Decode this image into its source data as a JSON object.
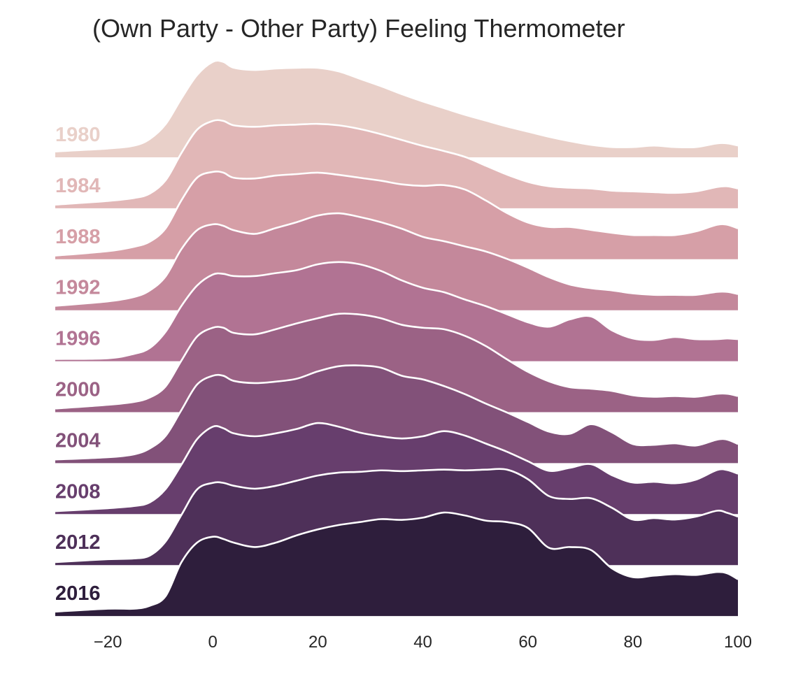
{
  "chart_data": {
    "type": "ridgeline",
    "title": "(Own Party - Other Party) Feeling Thermometer",
    "xlabel": "",
    "ylabel": "",
    "xlim": [
      -30,
      100
    ],
    "xticks": [
      -20,
      0,
      20,
      40,
      60,
      80,
      100
    ],
    "xtick_labels": [
      "−20",
      "0",
      "20",
      "40",
      "60",
      "80",
      "100"
    ],
    "grid": false,
    "x": [
      -30,
      -20,
      -15,
      -12,
      -9,
      -6,
      -3,
      0,
      2,
      4,
      8,
      12,
      16,
      20,
      24,
      28,
      32,
      36,
      40,
      44,
      48,
      52,
      56,
      60,
      64,
      68,
      72,
      76,
      80,
      84,
      88,
      92,
      96,
      98,
      100
    ],
    "series": [
      {
        "name": "1980",
        "color": "#e9d0c9",
        "values": [
          0.08,
          0.12,
          0.16,
          0.25,
          0.45,
          0.8,
          1.12,
          1.3,
          1.3,
          1.22,
          1.19,
          1.21,
          1.22,
          1.22,
          1.17,
          1.07,
          0.97,
          0.86,
          0.76,
          0.67,
          0.58,
          0.5,
          0.42,
          0.35,
          0.28,
          0.22,
          0.17,
          0.14,
          0.14,
          0.16,
          0.14,
          0.14,
          0.19,
          0.19,
          0.16
        ]
      },
      {
        "name": "1984",
        "color": "#e1b7b7",
        "values": [
          0.05,
          0.1,
          0.14,
          0.2,
          0.38,
          0.75,
          1.07,
          1.19,
          1.19,
          1.13,
          1.11,
          1.13,
          1.14,
          1.15,
          1.13,
          1.08,
          1.01,
          0.93,
          0.85,
          0.78,
          0.7,
          0.58,
          0.46,
          0.36,
          0.3,
          0.28,
          0.27,
          0.24,
          0.23,
          0.22,
          0.21,
          0.23,
          0.29,
          0.3,
          0.27
        ]
      },
      {
        "name": "1988",
        "color": "#d69fa7",
        "values": [
          0.05,
          0.11,
          0.17,
          0.24,
          0.42,
          0.8,
          1.11,
          1.19,
          1.18,
          1.11,
          1.1,
          1.14,
          1.16,
          1.18,
          1.15,
          1.11,
          1.07,
          1.02,
          1.0,
          1.01,
          0.95,
          0.8,
          0.63,
          0.5,
          0.44,
          0.44,
          0.4,
          0.36,
          0.33,
          0.33,
          0.33,
          0.38,
          0.47,
          0.47,
          0.42
        ]
      },
      {
        "name": "1992",
        "color": "#c4889b",
        "values": [
          0.06,
          0.12,
          0.18,
          0.27,
          0.46,
          0.83,
          1.09,
          1.17,
          1.15,
          1.09,
          1.04,
          1.12,
          1.2,
          1.29,
          1.32,
          1.27,
          1.2,
          1.11,
          1.0,
          0.94,
          0.87,
          0.8,
          0.7,
          0.58,
          0.45,
          0.35,
          0.3,
          0.27,
          0.23,
          0.21,
          0.21,
          0.21,
          0.25,
          0.25,
          0.22
        ]
      },
      {
        "name": "1996",
        "color": "#b17393",
        "values": [
          0.03,
          0.04,
          0.1,
          0.18,
          0.4,
          0.75,
          1.03,
          1.18,
          1.19,
          1.16,
          1.16,
          1.2,
          1.24,
          1.32,
          1.35,
          1.32,
          1.23,
          1.1,
          1.0,
          0.94,
          0.84,
          0.75,
          0.64,
          0.53,
          0.47,
          0.57,
          0.61,
          0.42,
          0.31,
          0.29,
          0.33,
          0.3,
          0.3,
          0.31,
          0.3
        ]
      },
      {
        "name": "2000",
        "color": "#9b6285",
        "values": [
          0.05,
          0.1,
          0.14,
          0.2,
          0.35,
          0.7,
          1.03,
          1.15,
          1.15,
          1.08,
          1.06,
          1.13,
          1.21,
          1.28,
          1.34,
          1.33,
          1.28,
          1.19,
          1.15,
          1.13,
          1.04,
          0.9,
          0.72,
          0.55,
          0.42,
          0.34,
          0.32,
          0.29,
          0.23,
          0.21,
          0.22,
          0.21,
          0.25,
          0.25,
          0.22
        ]
      },
      {
        "name": "2004",
        "color": "#825179",
        "values": [
          0.05,
          0.08,
          0.12,
          0.2,
          0.37,
          0.72,
          1.07,
          1.19,
          1.19,
          1.12,
          1.09,
          1.11,
          1.15,
          1.25,
          1.32,
          1.33,
          1.3,
          1.19,
          1.14,
          1.05,
          0.94,
          0.81,
          0.69,
          0.56,
          0.43,
          0.4,
          0.53,
          0.42,
          0.26,
          0.25,
          0.27,
          0.24,
          0.32,
          0.32,
          0.26
        ]
      },
      {
        "name": "2008",
        "color": "#673e6d",
        "values": [
          0.04,
          0.08,
          0.11,
          0.16,
          0.34,
          0.67,
          1.02,
          1.19,
          1.17,
          1.1,
          1.06,
          1.1,
          1.16,
          1.24,
          1.19,
          1.11,
          1.06,
          1.03,
          1.06,
          1.13,
          1.07,
          0.96,
          0.85,
          0.72,
          0.59,
          0.63,
          0.68,
          0.53,
          0.43,
          0.44,
          0.42,
          0.47,
          0.6,
          0.6,
          0.55
        ]
      },
      {
        "name": "2012",
        "color": "#4e3059",
        "values": [
          0.04,
          0.08,
          0.09,
          0.13,
          0.32,
          0.68,
          1.03,
          1.12,
          1.12,
          1.08,
          1.04,
          1.08,
          1.15,
          1.22,
          1.26,
          1.27,
          1.29,
          1.28,
          1.29,
          1.3,
          1.29,
          1.3,
          1.3,
          1.17,
          0.94,
          0.9,
          0.91,
          0.78,
          0.62,
          0.64,
          0.62,
          0.66,
          0.74,
          0.71,
          0.66
        ]
      },
      {
        "name": "2016",
        "color": "#2e1e3c",
        "values": [
          0.06,
          0.1,
          0.1,
          0.14,
          0.27,
          0.73,
          1.0,
          1.08,
          1.05,
          1.0,
          0.94,
          1.0,
          1.1,
          1.18,
          1.24,
          1.28,
          1.32,
          1.31,
          1.34,
          1.41,
          1.37,
          1.3,
          1.28,
          1.2,
          0.93,
          0.94,
          0.9,
          0.65,
          0.53,
          0.55,
          0.57,
          0.56,
          0.6,
          0.58,
          0.5
        ]
      }
    ]
  }
}
